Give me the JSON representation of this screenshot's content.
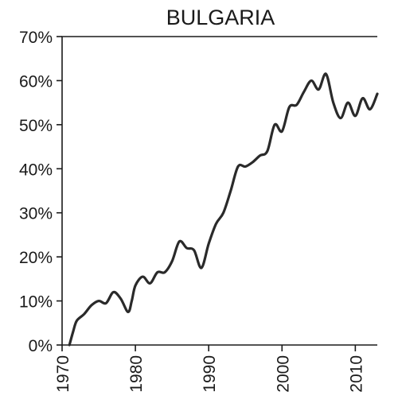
{
  "chart_data": {
    "type": "line",
    "title": "BULGARIA",
    "xlabel": "",
    "ylabel": "",
    "xlim": [
      1970,
      2013
    ],
    "ylim": [
      0,
      70
    ],
    "x_ticks": [
      1970,
      1980,
      1990,
      2000,
      2010
    ],
    "x_tick_labels": [
      "1970",
      "1980",
      "1990",
      "2000",
      "2010"
    ],
    "y_ticks": [
      0,
      10,
      20,
      30,
      40,
      50,
      60,
      70
    ],
    "y_tick_labels": [
      "0%",
      "10%",
      "20%",
      "30%",
      "40%",
      "50%",
      "60%",
      "70%"
    ],
    "grid": false,
    "series": [
      {
        "color": "#2a2a2a",
        "x": [
          1971,
          1971.5,
          1972,
          1973,
          1974,
          1975,
          1976,
          1977,
          1978,
          1979,
          1979.5,
          1980,
          1981,
          1982,
          1983,
          1984,
          1985,
          1986,
          1987,
          1988,
          1989,
          1990,
          1991,
          1992,
          1993,
          1994,
          1995,
          1996,
          1997,
          1998,
          1999,
          2000,
          2001,
          2002,
          2003,
          2004,
          2005,
          2006,
          2007,
          2008,
          2009,
          2010,
          2011,
          2012,
          2013
        ],
        "values": [
          0,
          3,
          5.5,
          7,
          9,
          10,
          9.5,
          12,
          10.5,
          7.5,
          10,
          13.5,
          15.5,
          14,
          16.5,
          16.5,
          19,
          23.5,
          22,
          21.5,
          17.5,
          23,
          27.5,
          30,
          35,
          40.5,
          40.5,
          41.5,
          43,
          44,
          50,
          48.5,
          54,
          54.5,
          57.5,
          60,
          58,
          61.5,
          55,
          51.5,
          55,
          52,
          56,
          53.5,
          57
        ]
      }
    ]
  }
}
